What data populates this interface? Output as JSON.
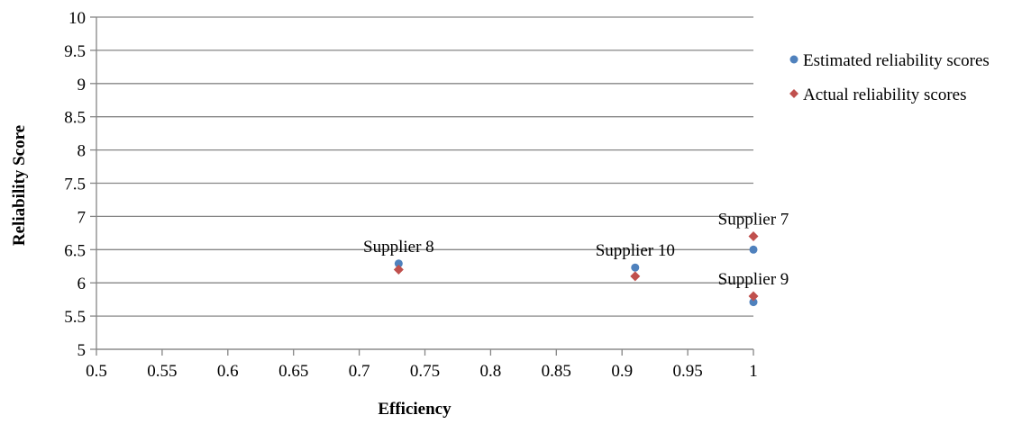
{
  "chart_data": {
    "type": "scatter",
    "xlabel": "Efficiency",
    "ylabel": "Reliability Score",
    "xlim": [
      0.5,
      1
    ],
    "ylim": [
      5,
      10
    ],
    "x_ticks": [
      "0.5",
      "0.55",
      "0.6",
      "0.65",
      "0.7",
      "0.75",
      "0.8",
      "0.85",
      "0.9",
      "0.95",
      "1"
    ],
    "y_ticks": [
      "5",
      "5.5",
      "6",
      "6.5",
      "7",
      "7.5",
      "8",
      "8.5",
      "9",
      "9.5",
      "10"
    ],
    "grid": "horizontal",
    "legend_position": "right",
    "series": [
      {
        "name": "Estimated reliability scores",
        "marker": "circle",
        "color": "#4F81BD",
        "points": [
          {
            "x": 0.73,
            "y": 6.29
          },
          {
            "x": 0.91,
            "y": 6.23
          },
          {
            "x": 1.0,
            "y": 6.5
          },
          {
            "x": 1.0,
            "y": 5.71
          }
        ]
      },
      {
        "name": "Actual reliability scores",
        "marker": "diamond",
        "color": "#C0504D",
        "points": [
          {
            "x": 0.73,
            "y": 6.2
          },
          {
            "x": 0.91,
            "y": 6.1
          },
          {
            "x": 1.0,
            "y": 6.7
          },
          {
            "x": 1.0,
            "y": 5.8
          }
        ]
      }
    ],
    "annotations": [
      {
        "text": "Supplier 8",
        "x": 0.73,
        "y": 6.29
      },
      {
        "text": "Supplier 10",
        "x": 0.91,
        "y": 6.23
      },
      {
        "text": "Supplier 7",
        "x": 1.0,
        "y": 6.7
      },
      {
        "text": "Supplier 9",
        "x": 1.0,
        "y": 5.8
      }
    ]
  }
}
